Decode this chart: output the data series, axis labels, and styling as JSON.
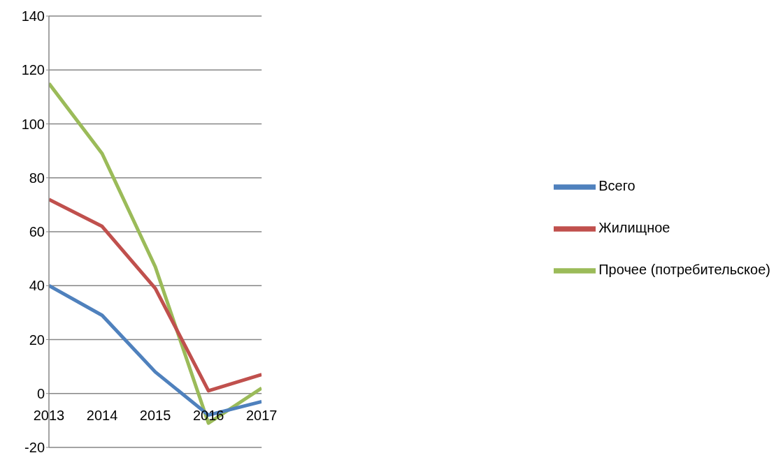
{
  "chart_data": {
    "type": "line",
    "x": [
      2013,
      2014,
      2015,
      2016,
      2017
    ],
    "xlim": [
      2013,
      2017
    ],
    "xticks": [
      2013,
      2014,
      2015,
      2016,
      2017
    ],
    "ylim": [
      -20,
      140
    ],
    "yticks": [
      -20,
      0,
      20,
      40,
      60,
      80,
      100,
      120,
      140
    ],
    "grid": "y",
    "legend": "right",
    "line_style": "solid",
    "series": [
      {
        "name": "Прочее (потребительское)",
        "color": "#9bbb59",
        "values": [
          115,
          89,
          47,
          -11,
          2
        ]
      },
      {
        "name": "Жилищное",
        "color": "#c0504d",
        "values": [
          72,
          62,
          39,
          1,
          7
        ]
      },
      {
        "name": "Всего",
        "color": "#4f81bd",
        "values": [
          40,
          29,
          8,
          -8,
          -3
        ]
      }
    ]
  }
}
